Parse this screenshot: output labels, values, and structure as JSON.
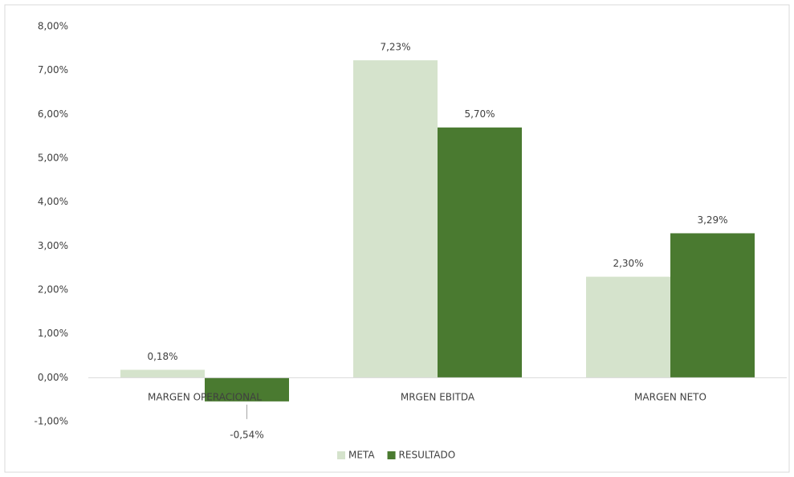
{
  "chart_data": {
    "type": "bar",
    "categories": [
      "MARGEN OPERACIONAL",
      "MRGEN EBITDA",
      "MARGEN NETO"
    ],
    "series": [
      {
        "name": "META",
        "color": "#d5e3cc",
        "values": [
          0.18,
          7.23,
          2.3
        ],
        "value_labels": [
          "0,18%",
          "7,23%",
          "2,30%"
        ]
      },
      {
        "name": "RESULTADO",
        "color": "#4a7a30",
        "values": [
          -0.54,
          5.7,
          3.29
        ],
        "value_labels": [
          "-0,54%",
          "5,70%",
          "3,29%"
        ]
      }
    ],
    "ylim": [
      -1,
      8
    ],
    "yticks": [
      {
        "value": -1,
        "label": "-1,00%"
      },
      {
        "value": 0,
        "label": "0,00%"
      },
      {
        "value": 1,
        "label": "1,00%"
      },
      {
        "value": 2,
        "label": "2,00%"
      },
      {
        "value": 3,
        "label": "3,00%"
      },
      {
        "value": 4,
        "label": "4,00%"
      },
      {
        "value": 5,
        "label": "5,00%"
      },
      {
        "value": 6,
        "label": "6,00%"
      },
      {
        "value": 7,
        "label": "7,00%"
      },
      {
        "value": 8,
        "label": "8,00%"
      }
    ],
    "grid": false,
    "legend": "bottom"
  }
}
